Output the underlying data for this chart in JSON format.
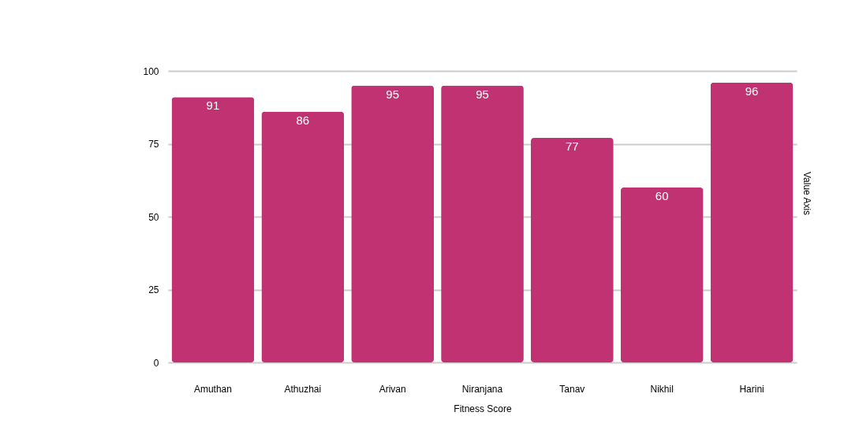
{
  "chart_data": {
    "type": "bar",
    "xlabel": "Fitness Score",
    "ylabel": "Value Axis",
    "categories": [
      "Amuthan",
      "Athuzhai",
      "Arivan",
      "Niranjana",
      "Tanav",
      "Nikhil",
      "Harini"
    ],
    "values": [
      91,
      86,
      95,
      95,
      77,
      60,
      96
    ],
    "color": "#c03272",
    "ylim": [
      0,
      100
    ],
    "yticks": [
      0,
      25,
      50,
      75,
      100
    ],
    "grid": "y",
    "data_labels": true
  }
}
